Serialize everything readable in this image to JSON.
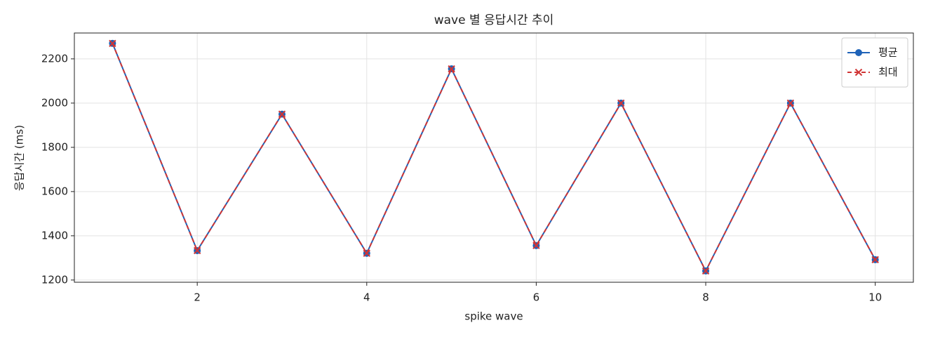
{
  "chart_data": {
    "type": "line",
    "title": "wave 별 응답시간 추이",
    "x_label": "spike wave",
    "y_label": "응답시간 (ms)",
    "x": [
      1,
      2,
      3,
      4,
      5,
      6,
      7,
      8,
      9,
      10
    ],
    "series": [
      {
        "name": "평균",
        "color": "#1f63b8",
        "marker": "o",
        "dash": false,
        "values": [
          2270,
          1333,
          1950,
          1321,
          2155,
          1356,
          2000,
          1241,
          2000,
          1292
        ]
      },
      {
        "name": "최대",
        "color": "#d03535",
        "marker": "x",
        "dash": true,
        "values": [
          2270,
          1333,
          1950,
          1321,
          2155,
          1356,
          2000,
          1241,
          2000,
          1292
        ]
      }
    ],
    "xlim": [
      0.55,
      10.45
    ],
    "ylim": [
      1190,
      2317
    ],
    "xticks": [
      2,
      4,
      6,
      8,
      10
    ],
    "yticks": [
      1200,
      1400,
      1600,
      1800,
      2000,
      2200
    ],
    "grid": true,
    "legend": "upper right"
  }
}
